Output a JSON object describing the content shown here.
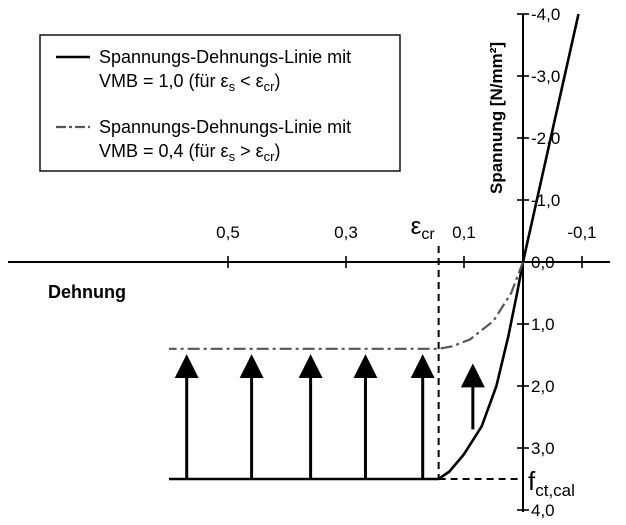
{
  "chart_data": {
    "type": "line",
    "title": "",
    "xlabel": "Dehnung",
    "ylabel": "Spannung [N/mm²]",
    "x_axis": {
      "ticks": [
        0.5,
        0.3,
        0.1,
        -0.1
      ],
      "tick_labels": [
        "0,5",
        "0,3",
        "0,1",
        "-0,1"
      ]
    },
    "y_axis": {
      "ticks": [
        -4,
        -3,
        -2,
        -1,
        0,
        1,
        2,
        3,
        4
      ],
      "tick_labels": [
        "-4,0",
        "-3,0",
        "-2,0",
        "-1,0",
        "0,0",
        "1,0",
        "2,0",
        "3,0",
        "4,0"
      ],
      "range": [
        -4,
        4
      ]
    },
    "markers": {
      "eps_cr": {
        "value": 0.143,
        "base": "ε",
        "sub": "cr"
      },
      "fct_cal": {
        "value": 3.5,
        "base": "f",
        "sub": "ct,cal"
      }
    },
    "series": [
      {
        "name": "VMB = 1,0",
        "style": "solid",
        "legend": {
          "line1": "Spannungs-Dehnungs-Linie mit",
          "line2_prefix": "VMB = 1,0 (für ",
          "relation": "<"
        },
        "points": [
          [
            -0.094,
            -4.0
          ],
          [
            -0.047,
            -2.0
          ],
          [
            0.0,
            0.0
          ],
          [
            0.01,
            0.5
          ],
          [
            0.025,
            1.2
          ],
          [
            0.045,
            2.0
          ],
          [
            0.07,
            2.65
          ],
          [
            0.1,
            3.1
          ],
          [
            0.125,
            3.38
          ],
          [
            0.143,
            3.5
          ],
          [
            0.6,
            3.5
          ]
        ]
      },
      {
        "name": "VMB = 0,4",
        "style": "dash-dot",
        "legend": {
          "line1": "Spannungs-Dehnungs-Linie mit",
          "line2_prefix": "VMB = 0,4 (für ",
          "relation": ">"
        },
        "points": [
          [
            0.0,
            0.0
          ],
          [
            0.02,
            0.5
          ],
          [
            0.05,
            0.95
          ],
          [
            0.09,
            1.25
          ],
          [
            0.12,
            1.36
          ],
          [
            0.143,
            1.4
          ],
          [
            0.6,
            1.4
          ]
        ]
      }
    ],
    "legend_symbols": {
      "strain": "ε",
      "strain_sub": "s",
      "crit_sub": "cr"
    },
    "arrows": [
      {
        "x": 0.57,
        "from": 3.5,
        "to": 1.55
      },
      {
        "x": 0.46,
        "from": 3.5,
        "to": 1.55
      },
      {
        "x": 0.36,
        "from": 3.5,
        "to": 1.55
      },
      {
        "x": 0.267,
        "from": 3.5,
        "to": 1.55
      },
      {
        "x": 0.17,
        "from": 3.5,
        "to": 1.55
      },
      {
        "x": 0.085,
        "from": 2.7,
        "to": 1.7
      }
    ]
  }
}
